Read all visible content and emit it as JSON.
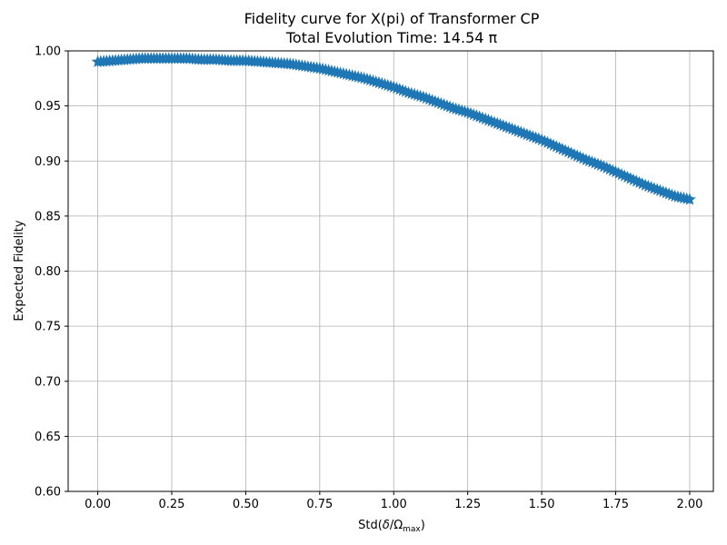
{
  "chart_data": {
    "type": "scatter",
    "title": "Fidelity curve for X(pi) of Transformer CP",
    "subtitle": "Total Evolution Time: 14.54 π",
    "xlabel_prefix": "Std(",
    "xlabel_delta": "δ",
    "xlabel_slash": "/",
    "xlabel_omega": "Ω",
    "xlabel_sub": "max",
    "xlabel_suffix": ")",
    "ylabel": "Expected Fidelity",
    "xlim": [
      -0.1,
      2.08
    ],
    "ylim": [
      0.6,
      1.0
    ],
    "xticks": [
      "0.00",
      "0.25",
      "0.50",
      "0.75",
      "1.00",
      "1.25",
      "1.50",
      "1.75",
      "2.00"
    ],
    "yticks": [
      "0.60",
      "0.65",
      "0.70",
      "0.75",
      "0.80",
      "0.85",
      "0.90",
      "0.95",
      "1.00"
    ],
    "grid": true,
    "marker_color": "#1f77b4",
    "series": [
      {
        "x": [
          0.0,
          0.05,
          0.1,
          0.15,
          0.2,
          0.25,
          0.3,
          0.35,
          0.4,
          0.45,
          0.5,
          0.55,
          0.6,
          0.65,
          0.7,
          0.75,
          0.8,
          0.85,
          0.9,
          0.95,
          1.0,
          1.05,
          1.1,
          1.15,
          1.2,
          1.25,
          1.3,
          1.35,
          1.4,
          1.45,
          1.5,
          1.55,
          1.6,
          1.65,
          1.7,
          1.75,
          1.8,
          1.85,
          1.9,
          1.95,
          2.0
        ],
        "y": [
          0.99,
          0.991,
          0.992,
          0.993,
          0.993,
          0.993,
          0.993,
          0.992,
          0.992,
          0.991,
          0.991,
          0.99,
          0.989,
          0.988,
          0.986,
          0.984,
          0.981,
          0.978,
          0.975,
          0.971,
          0.967,
          0.962,
          0.958,
          0.953,
          0.948,
          0.944,
          0.939,
          0.934,
          0.929,
          0.924,
          0.919,
          0.913,
          0.907,
          0.901,
          0.896,
          0.89,
          0.884,
          0.878,
          0.873,
          0.868,
          0.865
        ]
      }
    ]
  }
}
